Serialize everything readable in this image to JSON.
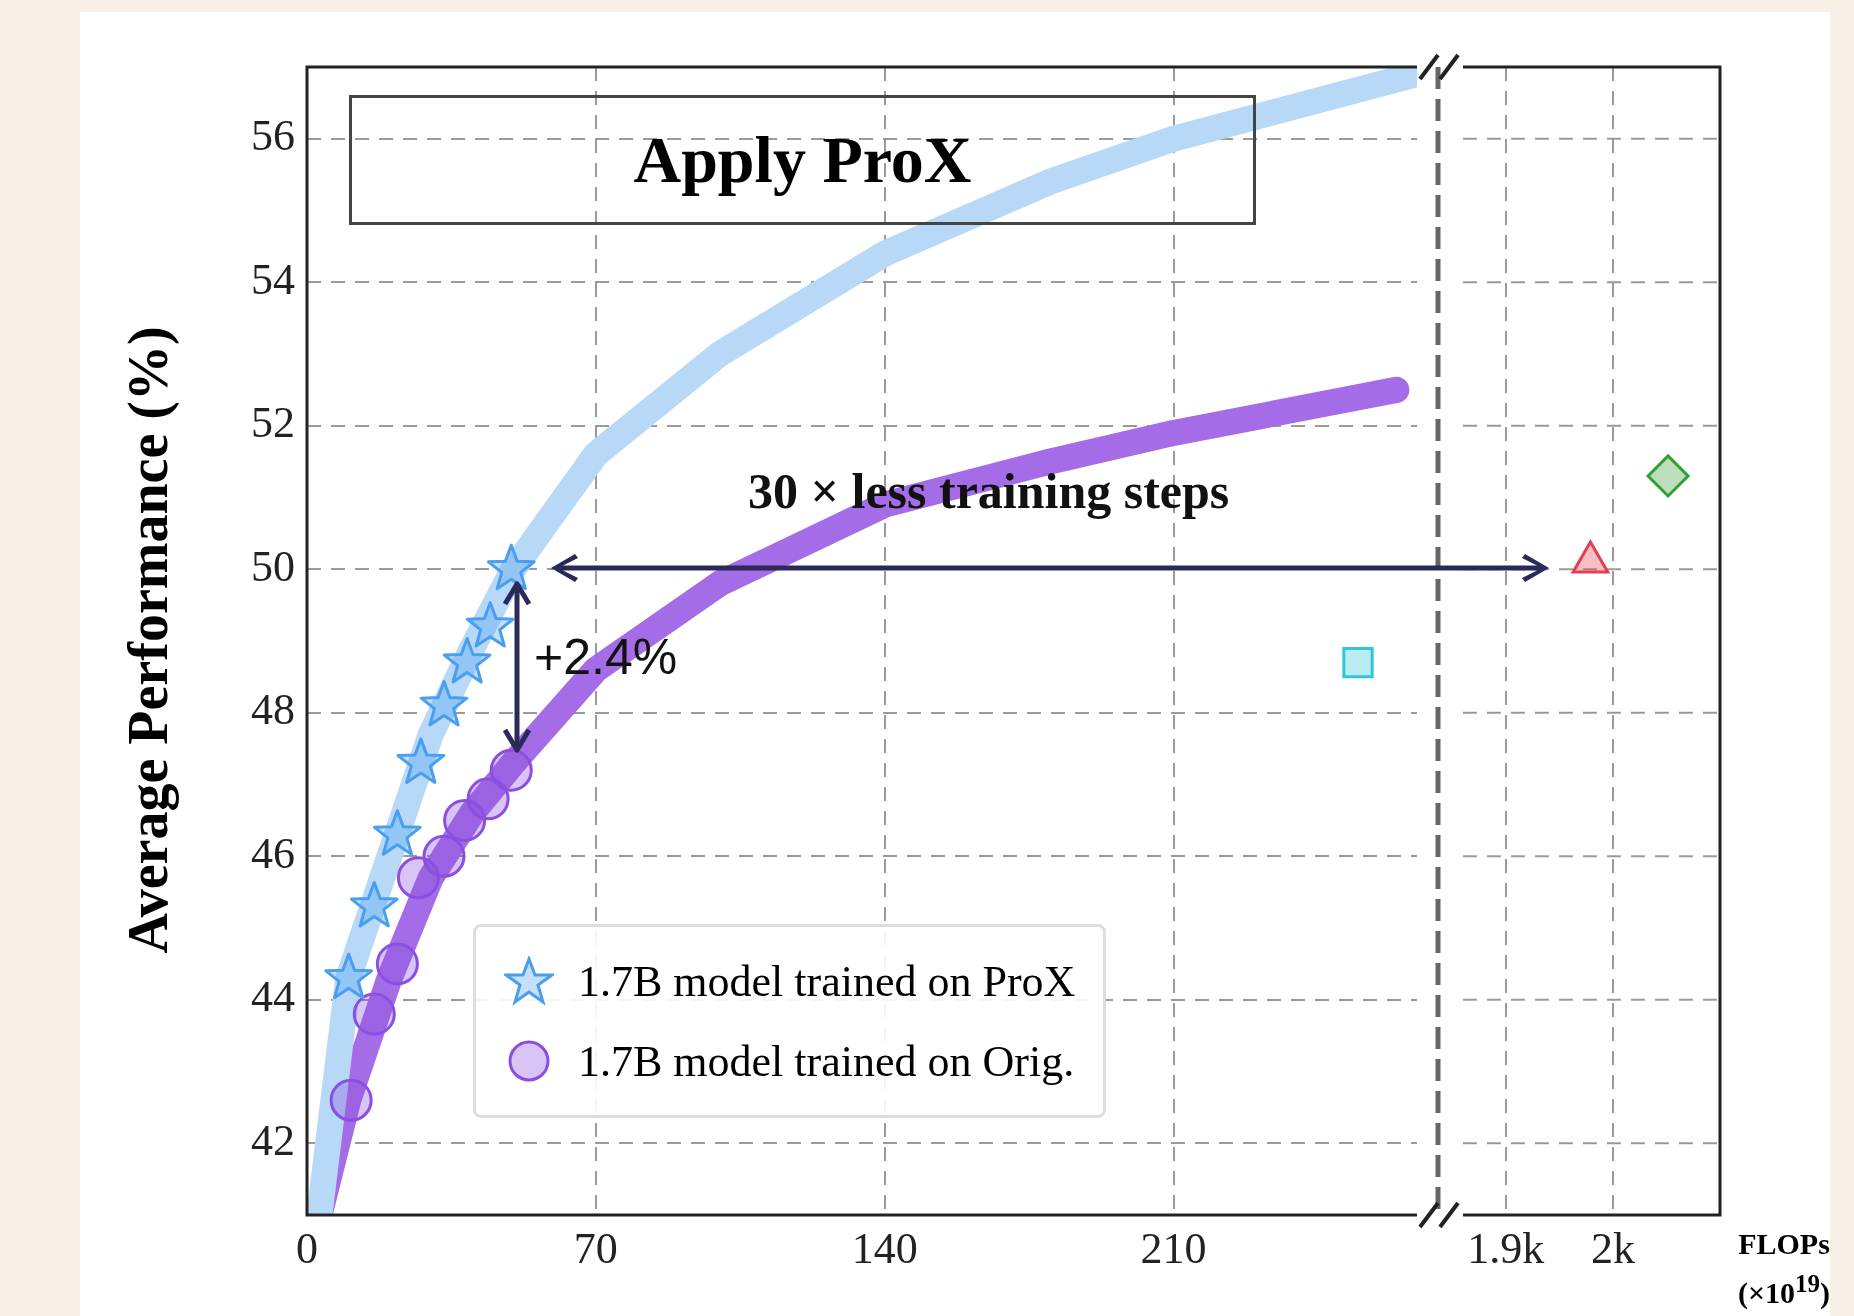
{
  "chart_data": [
    {
      "type": "scatter",
      "title": "Apply ProX",
      "ylabel": "Average Performance (%)",
      "annotations": [
        "30 × less training steps",
        "+2.4%"
      ],
      "xlim": [
        0,
        269
      ],
      "xticks": [
        0,
        70,
        140,
        210
      ],
      "ylim": [
        41,
        57
      ],
      "yticks": [
        42,
        44,
        46,
        48,
        50,
        52,
        54,
        56
      ],
      "grid": true,
      "legend": "bottom",
      "series": [
        {
          "type": "line",
          "color": "#b8d8f8",
          "marker": "none",
          "x": [
            3,
            10,
            20,
            30,
            40,
            50,
            70,
            100,
            140,
            180,
            210,
            269
          ],
          "values": [
            41.0,
            44.3,
            46.0,
            47.7,
            48.9,
            50.0,
            51.6,
            53.0,
            54.4,
            55.4,
            56.0,
            56.9
          ]
        },
        {
          "type": "line",
          "color": "#a46ce6",
          "marker": "none",
          "x": [
            3,
            10,
            20,
            30,
            40,
            50,
            70,
            100,
            140,
            180,
            210,
            264
          ],
          "values": [
            41.0,
            42.6,
            44.3,
            45.7,
            46.6,
            47.3,
            48.6,
            49.8,
            50.9,
            51.5,
            51.9,
            52.5
          ]
        },
        {
          "name": "1.7B model trained on ProX",
          "color": "#4a9ef0",
          "marker": "star",
          "x": [
            10.1,
            16.3,
            21.9,
            27.6,
            33.2,
            38.8,
            44.4,
            49.5
          ],
          "values": [
            44.3,
            45.3,
            46.3,
            47.3,
            48.1,
            48.7,
            49.2,
            50.0
          ]
        },
        {
          "name": "1.7B model trained on Orig.",
          "color": "#8a4fe0",
          "marker": "circle",
          "x": [
            10.7,
            16.3,
            21.9,
            27.0,
            33.2,
            38.2,
            43.9,
            49.5
          ],
          "values": [
            42.6,
            43.8,
            44.5,
            45.7,
            46.0,
            46.5,
            46.8,
            47.2
          ]
        },
        {
          "color": "#30c8d8",
          "marker": "square",
          "x": [
            254.7
          ],
          "values": [
            48.7
          ]
        }
      ]
    },
    {
      "type": "scatter",
      "xlabel": "FLOPs (×10$^{19}$)",
      "xlim": [
        1860,
        2100
      ],
      "xticks": [
        {
          "value": 1900,
          "label": "1.9k"
        },
        {
          "value": 2000,
          "label": "2k"
        }
      ],
      "ylim": [
        41,
        57
      ],
      "yticks": [
        42,
        44,
        46,
        48,
        50,
        52,
        54,
        56
      ],
      "grid": true,
      "tick_labels": "x",
      "series": [
        {
          "color": "#e0404f",
          "marker": "triangle",
          "x": [
            1979
          ],
          "values": [
            50.1
          ]
        },
        {
          "color": "#30a030",
          "marker": "diamond",
          "x": [
            2051.5
          ],
          "values": [
            51.3
          ]
        }
      ]
    }
  ]
}
